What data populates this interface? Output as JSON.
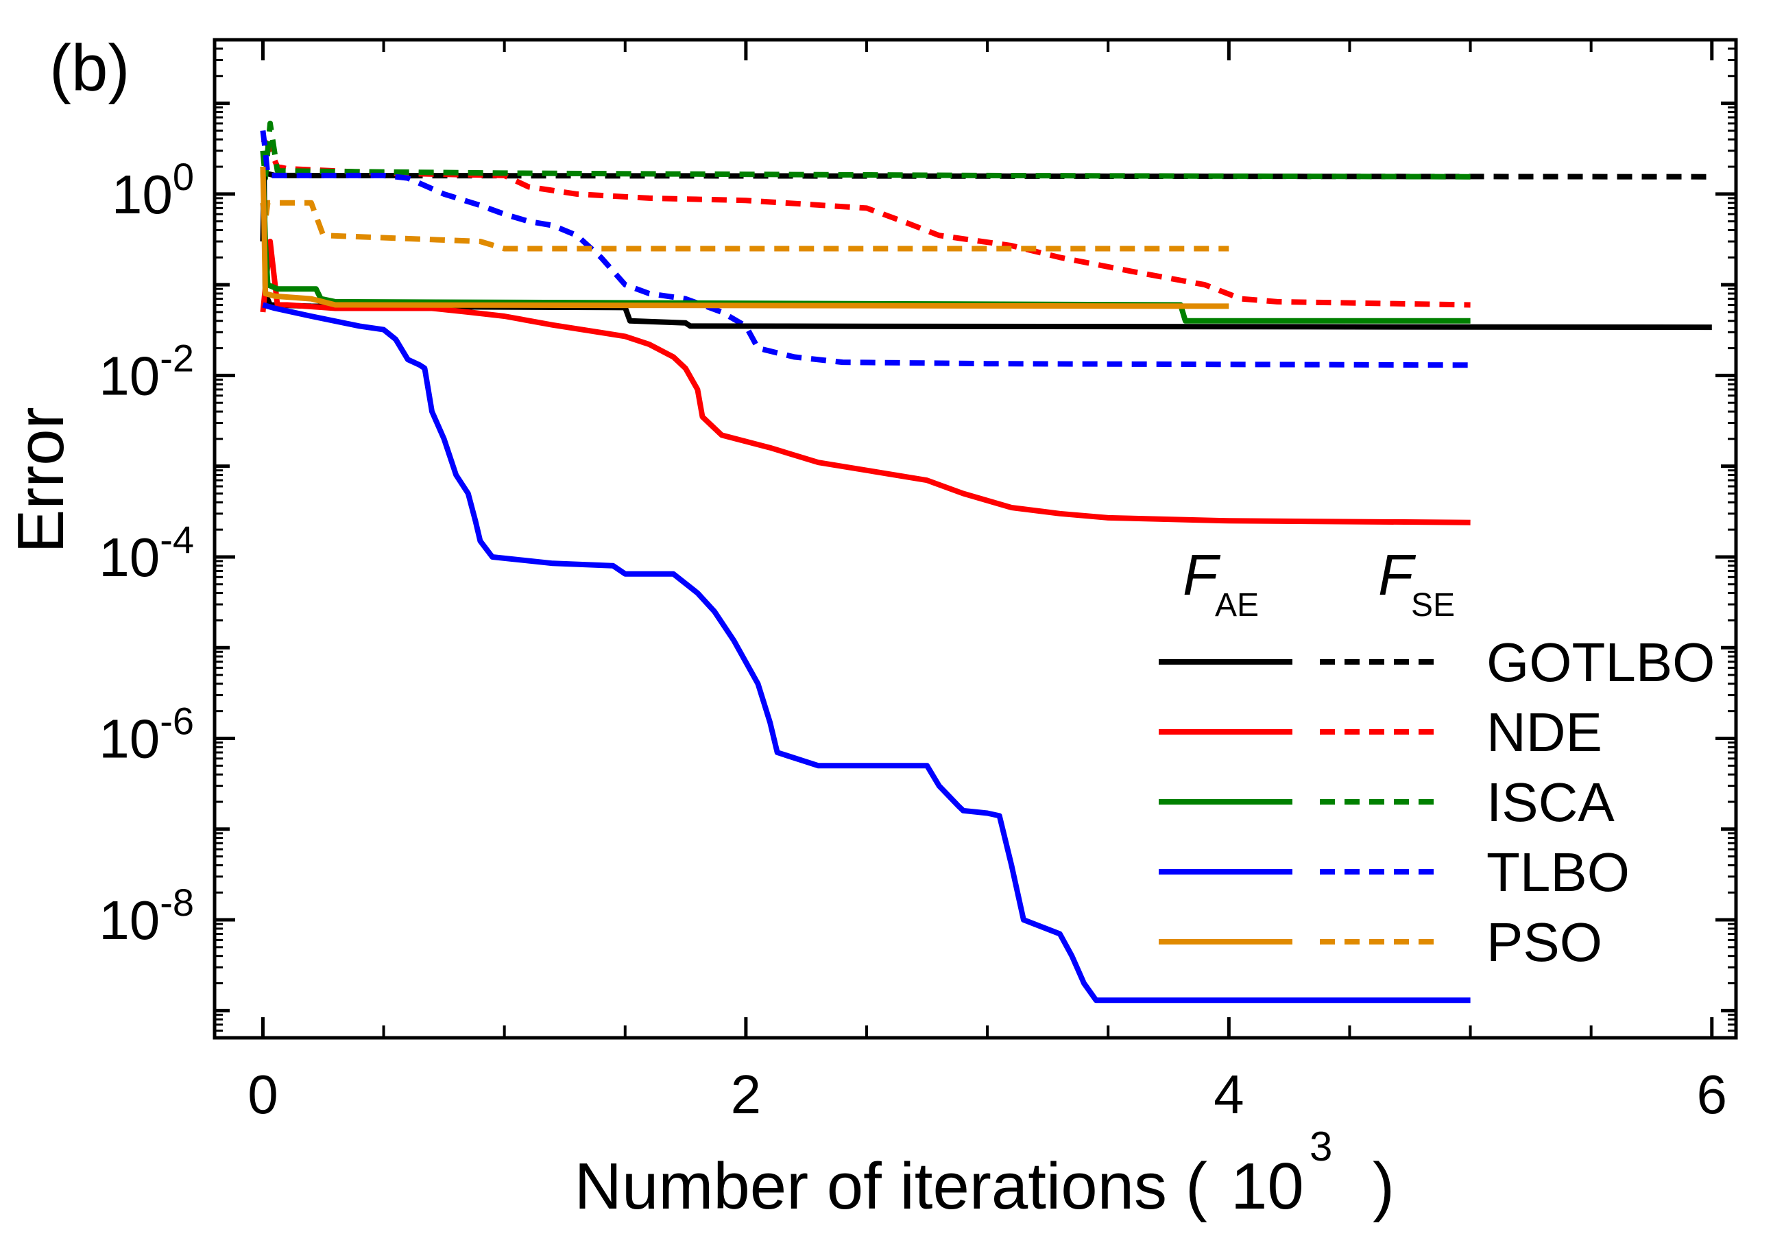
{
  "chart_data": {
    "type": "line",
    "panel_label": "(b)",
    "xlabel": "Number of iterations",
    "xlabel_unit": {
      "open": "(",
      "base": "10",
      "exponent": "3",
      "close": ")"
    },
    "ylabel": "Error",
    "xlim": [
      -0.2,
      6.1
    ],
    "ylim_log10": [
      -9.3,
      1.7
    ],
    "y_scale": "log",
    "x_ticks": [
      "0",
      "2",
      "4",
      "6"
    ],
    "x_tick_values": [
      0,
      2,
      4,
      6
    ],
    "y_ticks": [
      {
        "base": "10",
        "exp": "0",
        "log": 0
      },
      {
        "base": "10",
        "exp": "-2",
        "log": -2
      },
      {
        "base": "10",
        "exp": "-4",
        "log": -4
      },
      {
        "base": "10",
        "exp": "-6",
        "log": -6
      },
      {
        "base": "10",
        "exp": "-8",
        "log": -8
      }
    ],
    "grid": false,
    "legend": {
      "position": "center-right",
      "col_header_ae": {
        "main": "F",
        "sub": "AE"
      },
      "col_header_se": {
        "main": "F",
        "sub": "SE"
      },
      "entries": [
        "GOTLBO",
        "NDE",
        "ISCA",
        "TLBO",
        "PSO"
      ]
    },
    "colors": {
      "GOTLBO": "#000000",
      "NDE": "#ff0000",
      "ISCA": "#008000",
      "TLBO": "#0000ff",
      "PSO": "#e08a00"
    },
    "series": [
      {
        "name": "GOTLBO",
        "metric": "AE",
        "style": "solid",
        "points": [
          [
            0,
            0.3
          ],
          [
            0.005,
            1.5
          ],
          [
            0.01,
            0.08
          ],
          [
            0.03,
            0.06
          ],
          [
            0.2,
            0.058
          ],
          [
            1.5,
            0.056
          ],
          [
            1.52,
            0.04
          ],
          [
            1.75,
            0.038
          ],
          [
            1.77,
            0.035
          ],
          [
            6.0,
            0.034
          ]
        ]
      },
      {
        "name": "GOTLBO",
        "metric": "SE",
        "style": "dashed",
        "points": [
          [
            0,
            1.5
          ],
          [
            0.01,
            1.7
          ],
          [
            0.05,
            1.6
          ],
          [
            6.0,
            1.55
          ]
        ]
      },
      {
        "name": "NDE",
        "metric": "AE",
        "style": "solid",
        "points": [
          [
            0,
            0.05
          ],
          [
            0.03,
            0.3
          ],
          [
            0.06,
            0.06
          ],
          [
            0.1,
            0.06
          ],
          [
            0.3,
            0.055
          ],
          [
            0.5,
            0.055
          ],
          [
            0.7,
            0.055
          ],
          [
            0.85,
            0.05
          ],
          [
            1.0,
            0.045
          ],
          [
            1.2,
            0.036
          ],
          [
            1.5,
            0.027
          ],
          [
            1.6,
            0.022
          ],
          [
            1.7,
            0.016
          ],
          [
            1.75,
            0.012
          ],
          [
            1.8,
            0.007
          ],
          [
            1.82,
            0.0035
          ],
          [
            1.9,
            0.0022
          ],
          [
            2.1,
            0.0016
          ],
          [
            2.3,
            0.0011
          ],
          [
            2.5,
            0.0009
          ],
          [
            2.75,
            0.0007
          ],
          [
            2.9,
            0.0005
          ],
          [
            3.1,
            0.00035
          ],
          [
            3.3,
            0.0003
          ],
          [
            3.5,
            0.00027
          ],
          [
            4.0,
            0.00025
          ],
          [
            5.0,
            0.00024
          ]
        ]
      },
      {
        "name": "NDE",
        "metric": "SE",
        "style": "dashed",
        "points": [
          [
            0,
            4
          ],
          [
            0.02,
            3.5
          ],
          [
            0.06,
            2.0
          ],
          [
            0.1,
            1.9
          ],
          [
            0.5,
            1.7
          ],
          [
            1.0,
            1.6
          ],
          [
            1.1,
            1.2
          ],
          [
            1.3,
            1.0
          ],
          [
            1.6,
            0.9
          ],
          [
            2.0,
            0.85
          ],
          [
            2.5,
            0.7
          ],
          [
            2.65,
            0.5
          ],
          [
            2.8,
            0.35
          ],
          [
            3.1,
            0.27
          ],
          [
            3.3,
            0.2
          ],
          [
            3.6,
            0.14
          ],
          [
            3.9,
            0.1
          ],
          [
            4.05,
            0.07
          ],
          [
            4.2,
            0.065
          ],
          [
            5.0,
            0.06
          ]
        ]
      },
      {
        "name": "ISCA",
        "metric": "AE",
        "style": "solid",
        "points": [
          [
            0,
            2
          ],
          [
            0.005,
            0.8
          ],
          [
            0.01,
            0.3
          ],
          [
            0.02,
            0.1
          ],
          [
            0.06,
            0.09
          ],
          [
            0.22,
            0.09
          ],
          [
            0.24,
            0.07
          ],
          [
            0.3,
            0.065
          ],
          [
            3.8,
            0.06
          ],
          [
            3.82,
            0.04
          ],
          [
            5.0,
            0.04
          ]
        ]
      },
      {
        "name": "ISCA",
        "metric": "SE",
        "style": "dashed",
        "points": [
          [
            0,
            3
          ],
          [
            0.01,
            1.5
          ],
          [
            0.03,
            6.0
          ],
          [
            0.06,
            1.8
          ],
          [
            0.5,
            1.75
          ],
          [
            1.0,
            1.7
          ],
          [
            3.0,
            1.6
          ],
          [
            5.0,
            1.55
          ]
        ]
      },
      {
        "name": "TLBO",
        "metric": "AE",
        "style": "solid",
        "points": [
          [
            0,
            0.06
          ],
          [
            0.05,
            0.055
          ],
          [
            0.2,
            0.045
          ],
          [
            0.4,
            0.035
          ],
          [
            0.5,
            0.032
          ],
          [
            0.55,
            0.025
          ],
          [
            0.6,
            0.015
          ],
          [
            0.65,
            0.013
          ],
          [
            0.67,
            0.012
          ],
          [
            0.7,
            0.004
          ],
          [
            0.75,
            0.002
          ],
          [
            0.8,
            0.0008
          ],
          [
            0.85,
            0.0005
          ],
          [
            0.88,
            0.00025
          ],
          [
            0.9,
            0.00015
          ],
          [
            0.95,
            0.0001
          ],
          [
            1.2,
            8.5e-05
          ],
          [
            1.45,
            8e-05
          ],
          [
            1.5,
            6.5e-05
          ],
          [
            1.7,
            6.5e-05
          ],
          [
            1.8,
            4e-05
          ],
          [
            1.87,
            2.5e-05
          ],
          [
            1.95,
            1.2e-05
          ],
          [
            2.05,
            4e-06
          ],
          [
            2.1,
            1.5e-06
          ],
          [
            2.13,
            7e-07
          ],
          [
            2.3,
            5e-07
          ],
          [
            2.75,
            5e-07
          ],
          [
            2.8,
            3e-07
          ],
          [
            2.88,
            1.8e-07
          ],
          [
            2.9,
            1.6e-07
          ],
          [
            3.0,
            1.5e-07
          ],
          [
            3.05,
            1.4e-07
          ],
          [
            3.1,
            4e-08
          ],
          [
            3.15,
            1e-08
          ],
          [
            3.3,
            7e-09
          ],
          [
            3.35,
            4e-09
          ],
          [
            3.4,
            2e-09
          ],
          [
            3.45,
            1.3e-09
          ],
          [
            5.0,
            1.3e-09
          ]
        ]
      },
      {
        "name": "TLBO",
        "metric": "SE",
        "style": "dashed",
        "points": [
          [
            0,
            5
          ],
          [
            0.01,
            3
          ],
          [
            0.02,
            1.6
          ],
          [
            0.5,
            1.6
          ],
          [
            0.6,
            1.5
          ],
          [
            0.75,
            1.0
          ],
          [
            0.9,
            0.75
          ],
          [
            1.0,
            0.6
          ],
          [
            1.1,
            0.5
          ],
          [
            1.2,
            0.45
          ],
          [
            1.3,
            0.35
          ],
          [
            1.4,
            0.2
          ],
          [
            1.5,
            0.1
          ],
          [
            1.6,
            0.08
          ],
          [
            1.75,
            0.07
          ],
          [
            1.9,
            0.05
          ],
          [
            2.0,
            0.035
          ],
          [
            2.05,
            0.02
          ],
          [
            2.2,
            0.016
          ],
          [
            2.4,
            0.014
          ],
          [
            3.0,
            0.0135
          ],
          [
            5.0,
            0.013
          ]
        ]
      },
      {
        "name": "PSO",
        "metric": "AE",
        "style": "solid",
        "points": [
          [
            0,
            2
          ],
          [
            0.005,
            0.5
          ],
          [
            0.01,
            0.08
          ],
          [
            0.05,
            0.075
          ],
          [
            0.2,
            0.07
          ],
          [
            0.3,
            0.06
          ],
          [
            4.0,
            0.058
          ]
        ]
      },
      {
        "name": "PSO",
        "metric": "SE",
        "style": "dashed",
        "points": [
          [
            0,
            0.8
          ],
          [
            0.01,
            0.5
          ],
          [
            0.02,
            0.8
          ],
          [
            0.2,
            0.8
          ],
          [
            0.25,
            0.35
          ],
          [
            0.9,
            0.3
          ],
          [
            1.0,
            0.25
          ],
          [
            4.0,
            0.25
          ]
        ]
      }
    ]
  }
}
